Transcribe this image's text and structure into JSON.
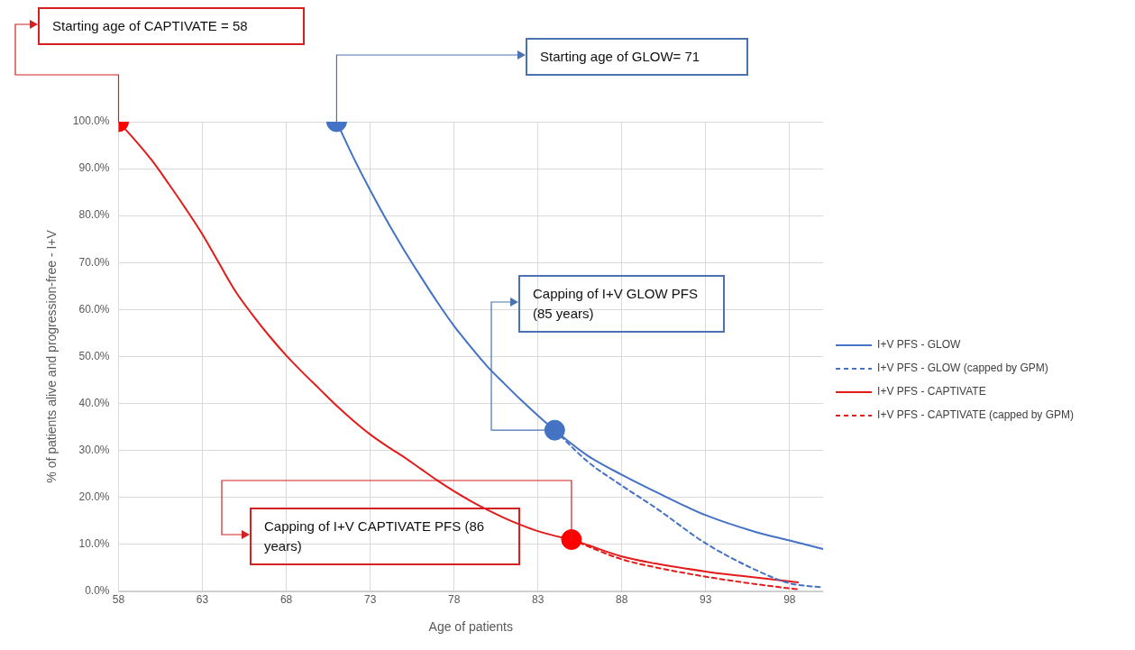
{
  "chart_data": {
    "type": "line",
    "xlabel": "Age of patients",
    "ylabel": "% of patients alive and progression-free - I+V",
    "xlim": [
      58,
      100
    ],
    "xticks": [
      58,
      63,
      68,
      73,
      78,
      83,
      88,
      93,
      98
    ],
    "ylim": [
      0,
      100
    ],
    "yticks": [
      {
        "value": 0,
        "label": "0.0%"
      },
      {
        "value": 10,
        "label": "10.0%"
      },
      {
        "value": 20,
        "label": "20.0%"
      },
      {
        "value": 30,
        "label": "30.0%"
      },
      {
        "value": 40,
        "label": "40.0%"
      },
      {
        "value": 50,
        "label": "50.0%"
      },
      {
        "value": 60,
        "label": "60.0%"
      },
      {
        "value": 70,
        "label": "70.0%"
      },
      {
        "value": 80,
        "label": "80.0%"
      },
      {
        "value": 90,
        "label": "90.0%"
      },
      {
        "value": 100,
        "label": "100.0%"
      }
    ],
    "grid": true,
    "legend": "right",
    "marker": "none",
    "series": [
      {
        "name": "I+V PFS - GLOW",
        "color": "#4472c4",
        "line_style": "solid",
        "x": [
          71,
          72,
          73,
          74,
          75,
          76,
          77,
          78,
          79,
          80,
          81,
          82,
          83,
          84,
          86,
          88,
          90,
          93,
          96,
          98,
          100
        ],
        "values": [
          100,
          92.4,
          85.4,
          78.9,
          72.8,
          67.1,
          61.6,
          56.5,
          52,
          47.8,
          44.2,
          40.7,
          37.4,
          34.3,
          28.8,
          24.8,
          21.2,
          16.2,
          12.6,
          10.8,
          9.0
        ]
      },
      {
        "name": "I+V PFS - GLOW (capped by GPM)",
        "color": "#4472c4",
        "line_style": "dashed",
        "x": [
          84,
          86,
          88,
          90,
          93,
          96,
          98,
          100
        ],
        "values": [
          34.3,
          27.5,
          22.5,
          17.8,
          10.2,
          4.5,
          1.7,
          0.8
        ]
      },
      {
        "name": "I+V PFS - CAPTIVATE",
        "color": "#e31b1b",
        "line_style": "solid",
        "x": [
          58,
          59,
          60,
          61,
          62,
          63,
          64,
          65,
          66,
          67,
          68,
          69,
          70,
          71,
          72,
          73,
          74,
          75,
          76,
          77,
          78,
          79,
          80,
          81,
          82,
          83,
          84,
          85,
          86,
          88,
          90,
          93,
          95,
          98.5
        ],
        "values": [
          100,
          96,
          91.7,
          86.7,
          81.5,
          76,
          69.8,
          63.7,
          58.8,
          54.3,
          50.2,
          46.5,
          43,
          39.5,
          36.3,
          33.4,
          30.9,
          28.6,
          26.1,
          23.6,
          21.3,
          19.2,
          17.3,
          15.6,
          14.1,
          12.8,
          11.8,
          11,
          9.8,
          7.4,
          5.9,
          4.2,
          3.3,
          1.9
        ]
      },
      {
        "name": "I+V PFS - CAPTIVATE (capped by GPM)",
        "color": "#e31b1b",
        "line_style": "dashed",
        "x": [
          85,
          88,
          90,
          93,
          96,
          98.5
        ],
        "values": [
          11,
          6.8,
          5.1,
          3.1,
          1.5,
          0.4
        ]
      },
      {
        "type": "scatter",
        "marker": "circle",
        "color": "#ff0000",
        "x": [
          58,
          85
        ],
        "values": [
          100,
          11
        ]
      },
      {
        "type": "scatter",
        "marker": "circle",
        "color": "#4472c4",
        "x": [
          71,
          84
        ],
        "values": [
          100,
          34.3
        ]
      }
    ],
    "annotations": [
      "Starting age of CAPTIVATE = 58",
      "Starting age of GLOW= 71",
      "Capping of I+V GLOW PFS (85 years)",
      "Capping of I+V CAPTIVATE PFS (86 years)"
    ]
  }
}
